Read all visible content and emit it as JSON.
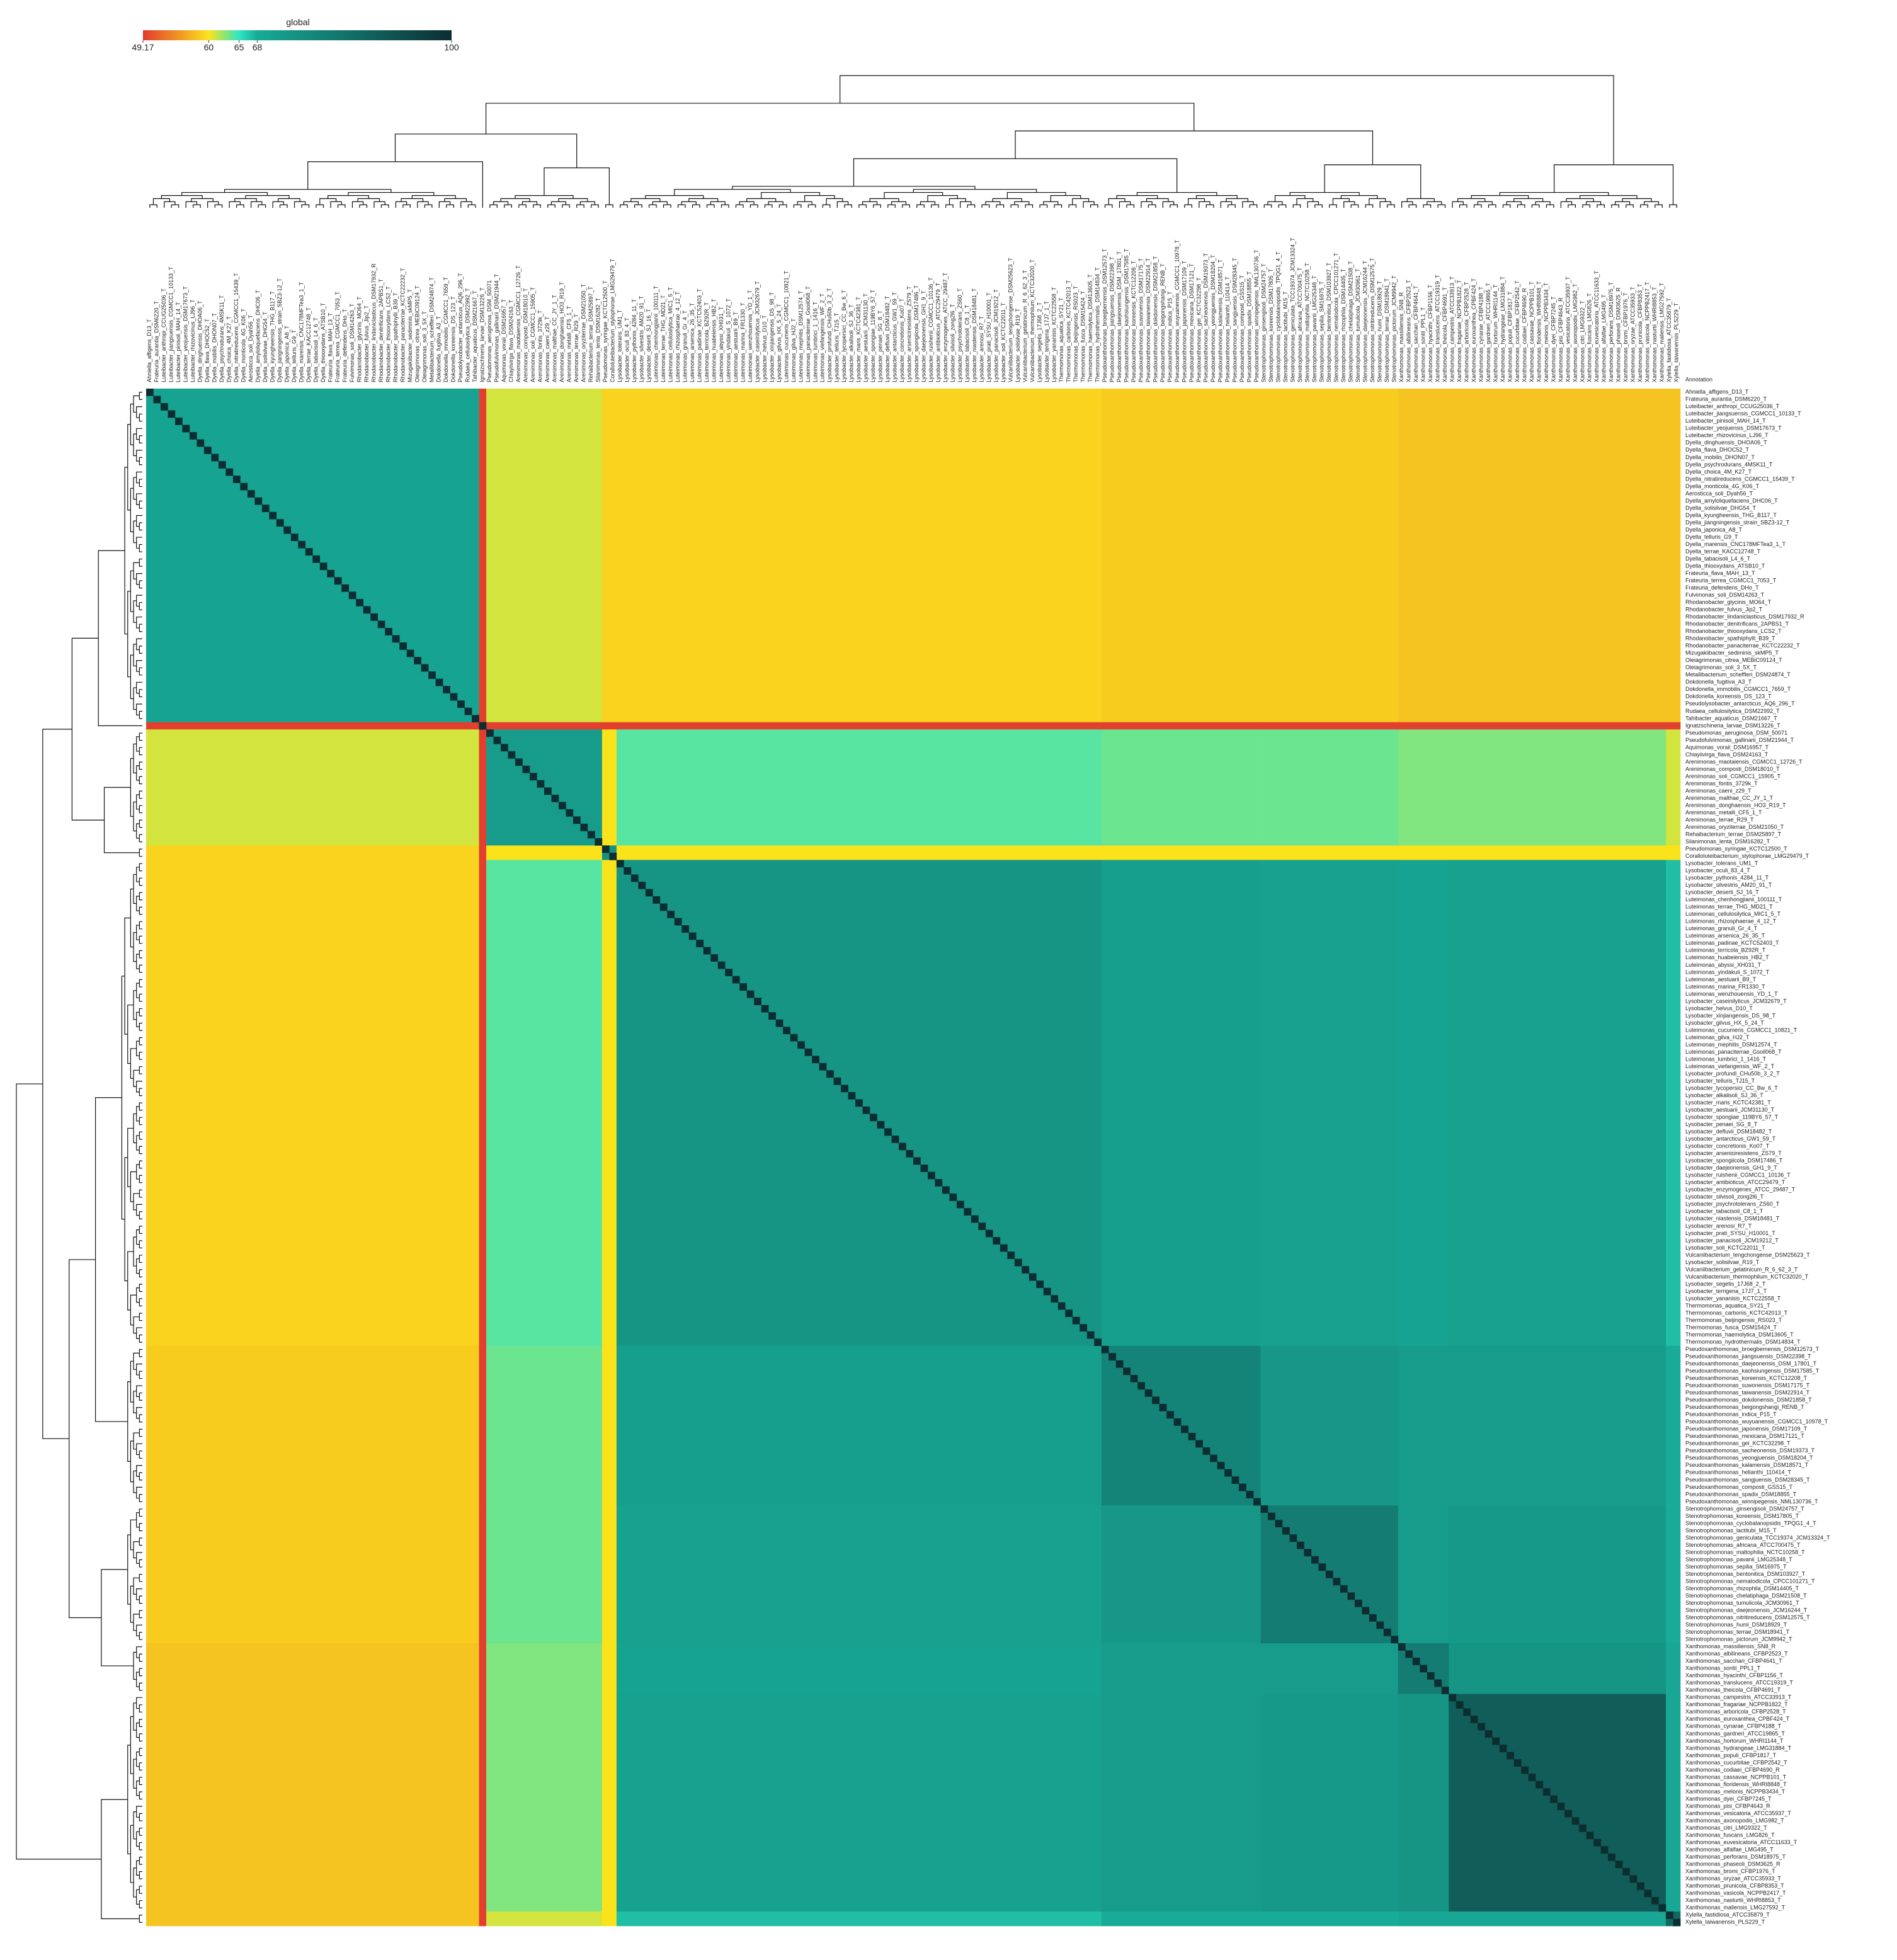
{
  "chart_data": {
    "type": "heatmap",
    "colorbar_title": "global",
    "annotation_title": "Annotation",
    "colorbar_ticks": [
      49.17,
      60,
      65,
      68,
      100
    ],
    "colorbar_colors": [
      "#e23a2f",
      "#fbe31c",
      "#2fe6c2",
      "#18ab97",
      "#0c2e33"
    ],
    "labels": [
      "Ahniella_affigens_D13_T",
      "Frateuria_aurantia_DSM6220_T",
      "Luteibacter_anthropi_CCUG25036_T",
      "Luteibacter_jiangsuensis_CGMCC1_10133_T",
      "Luteibacter_pinisoli_MAH_14_T",
      "Luteibacter_yeojuensis_DSM17673_T",
      "Luteibacter_rhizovicinus_LJ96_T",
      "Dyella_dinghuensis_DHOA06_T",
      "Dyella_flava_DHOC52_T",
      "Dyella_mobilis_DHON07_T",
      "Dyella_psychrodurans_4MSK11_T",
      "Dyella_choica_4M_K27_T",
      "Dyella_nitratireducens_CGMCC1_15439_T",
      "Dyella_monticola_4G_K06_T",
      "Aerosticca_soli_Dyah56_T",
      "Dyella_amyloliquefaciens_DHC06_T",
      "Dyella_solisilvae_DHG54_T",
      "Dyella_kyungheensis_THG_B117_T",
      "Dyella_jiangningensis_strain_SBZ3-12_T",
      "Dyella_japonica_A8_T",
      "Dyella_telluris_G9_T",
      "Dyella_marensis_CNC178MFTea3_1_T",
      "Dyella_terrae_KACC12748_T",
      "Dyella_tabacisoli_L4_6_T",
      "Dyella_thiooxydans_ATSB10_T",
      "Frateuria_flava_MAH_13_T",
      "Frateuria_terrea_CGMCC1_7053_T",
      "Frateuria_defendens_DHo_T",
      "Fulvimonas_soli_DSM14263_T",
      "Rhodanobacter_glycinis_MO64_T",
      "Rhodanobacter_fulvus_Jip2_T",
      "Rhodanobacter_lindaniclasticus_DSM17932_R",
      "Rhodanobacter_denitrificans_2APBS1_T",
      "Rhodanobacter_thiooxydans_LCS2_T",
      "Rhodanobacter_spathiphylli_B39_T",
      "Rhodanobacter_panaciterrae_KCTC22232_T",
      "Mizugakiibacter_sediminis_skMP5_T",
      "Oleiagrimonas_citrea_MEBiC09124_T",
      "Oleiagrimonas_soli_3_5X_T",
      "Metallibacterium_scheffleri_DSM24874_T",
      "Dokdonella_fugitiva_A3_T",
      "Dokdonella_immobilis_CGMCC1_7659_T",
      "Dokdonella_koreensis_DS_123_T",
      "Pseudolysobacter_antarcticus_AQ6_296_T",
      "Rudaea_cellulosilytica_DSM22992_T",
      "Tahibacter_aquaticus_DSM21667_T",
      "Ignatzschineria_larvae_DSM13226_T",
      "Pseudomonas_aeruginosa_DSM_50071",
      "Pseudofulvimonas_gallinarii_DSM21944_T",
      "Aquimonas_voraii_DSM16957_T",
      "Chiayiivirga_flava_DSM24163_T",
      "Arenimonas_maotaiensis_CGMCC1_12726_T",
      "Arenimonas_composti_DSM18010_T",
      "Arenimonas_soli_CGMCC1_15905_T",
      "Arenimonas_fontis_3729k_T",
      "Arenimonas_caeni_z29_T",
      "Arenimonas_malthae_CC_JY_1_T",
      "Arenimonas_donghaensis_HO3_R19_T",
      "Arenimonas_metalli_CF5_1_T",
      "Arenimonas_terrae_R29_T",
      "Arenimonas_oryziterrae_DSM21050_T",
      "Rehaibacterium_terrae_DSM25897_T",
      "Silanimonas_lenta_DSM16282_T",
      "Pseudomonas_syringae_KCTC12500_T",
      "Coralloluteibacterium_stylophorae_LMG29479_T",
      "Lysobacter_tolerans_UM1_T",
      "Lysobacter_oculi_83_4_T",
      "Lysobacter_pythonis_4284_11_T",
      "Lysobacter_silvestris_AM20_91_T",
      "Lysobacter_deserti_SJ_16_T",
      "Luteimonas_chenhongjianii_100111_T",
      "Luteimonas_terrae_THG_MD21_T",
      "Luteimonas_cellulosilytica_MIC1_5_T",
      "Luteimonas_rhizosphaerae_4_12_T",
      "Luteimonas_granuli_Gr_4_T",
      "Luteimonas_arsenica_26_35_T",
      "Luteimonas_padinae_KCTC52403_T",
      "Luteimonas_terricola_BZ92R_T",
      "Luteimonas_huabeiensis_HB2_T",
      "Luteimonas_abyssi_XH031_T",
      "Luteimonas_yindakuii_S_1072_T",
      "Luteimonas_aestuarii_B9_T",
      "Luteimonas_marina_FR1330_T",
      "Luteimonas_wenzhouensis_YD_1_T",
      "Lysobacter_caseinilyticus_JCM32679_T",
      "Lysobacter_helvus_D10_T",
      "Lysobacter_xinjiangensis_DS_98_T",
      "Lysobacter_gilvus_HX_5_24_T",
      "Luteimonas_cucumeris_CGMCC1_10821_T",
      "Luteimonas_gilva_HJ2_T",
      "Luteimonas_mephitis_DSM12574_T",
      "Luteimonas_panaciterrae_Gsoil068_T",
      "Luteimonas_lumbrici_1_1416_T",
      "Luteimonas_viefangensis_WF_2_T",
      "Lysobacter_profundi_CHu50b_3_2_T",
      "Lysobacter_telluris_TJ15_T",
      "Lysobacter_lycopersici_CC_Bw_6_T",
      "Lysobacter_alkalisoli_SJ_36_T",
      "Lysobacter_maris_KCTC42381_T",
      "Lysobacter_aestuarii_JCM31130_T",
      "Lysobacter_spongiae_119BY6_57_T",
      "Lysobacter_penaei_SG_8_T",
      "Lysobacter_defluvii_DSM18482_T",
      "Lysobacter_antarcticus_GW1_59_T",
      "Lysobacter_concretionis_Ko07_T",
      "Lysobacter_arseniciresistens_ZS79_T",
      "Lysobacter_spongiicola_DSM17486_T",
      "Lysobacter_daejeonensis_GH1_9_T",
      "Lysobacter_ruishenii_CGMCC1_10136_T",
      "Lysobacter_antibioticus_ATCC29479_T",
      "Lysobacter_enzymogenes_ATCC_29487_T",
      "Lysobacter_silvisoli_zong2l6_T",
      "Lysobacter_psychrotolerans_ZS60_T",
      "Lysobacter_tabacisoli_C8_1_T",
      "Lysobacter_niastensis_DSM18481_T",
      "Lysobacter_arenosi_R7_T",
      "Lysobacter_prati_SYSU_H10001_T",
      "Lysobacter_panacisoli_JCM19212_T",
      "Lysobacter_soli_KCTC22011_T",
      "Vulcaniibacterium_tengchongense_DSM25623_T",
      "Lysobacter_solisilvae_R19_T",
      "Vulcaniibacterium_gelatinicum_R_6_62_3_T",
      "Vulcaniibacterium_thermophilum_KCTC32020_T",
      "Lysobacter_segetis_17J68_2_T",
      "Lysobacter_terrigena_17J7_1_T",
      "Lysobacter_yananisis_KCTC22558_T",
      "Thermomonas_aquatica_SY21_T",
      "Thermomonas_carbonis_KCTC42013_T",
      "Thermomonas_beijingensis_RS023_T",
      "Thermomonas_fusca_DSM15424_T",
      "Thermomonas_haemolytica_DSM13605_T",
      "Thermomonas_hydrothermalis_DSM14834_T",
      "Pseudoxanthomonas_broegbernensis_DSM12573_T",
      "Pseudoxanthomonas_jiangsuensis_DSM22398_T",
      "Pseudoxanthomonas_daejeonensis_DSM_17801_T",
      "Pseudoxanthomonas_kaohsiungensis_DSM17585_T",
      "Pseudoxanthomonas_koreensis_KCTC12208_T",
      "Pseudoxanthomonas_suwonensis_DSM17175_T",
      "Pseudoxanthomonas_taiwanensis_DSM22914_T",
      "Pseudoxanthomonas_dokdonensis_DSM21858_T",
      "Pseudoxanthomonas_beigongshangi_RENB_T",
      "Pseudoxanthomonas_indica_P15_T",
      "Pseudoxanthomonas_wuyuanensis_CGMCC1_10978_T",
      "Pseudoxanthomonas_japonensis_DSM17109_T",
      "Pseudoxanthomonas_mexicana_DSM17121_T",
      "Pseudoxanthomonas_gei_KCTC32298_T",
      "Pseudoxanthomonas_sacheonensis_DSM19373_T",
      "Pseudoxanthomonas_yeongjuensis_DSM18204_T",
      "Pseudoxanthomonas_kalamensis_DSM18571_T",
      "Pseudoxanthomonas_helianthi_110414_T",
      "Pseudoxanthomonas_sangjuensis_DSM28345_T",
      "Pseudoxanthomonas_composti_GSS15_T",
      "Pseudoxanthomonas_spadix_DSM18855_T",
      "Pseudoxanthomonas_winnipegensis_NML130736_T",
      "Stenotrophomonas_ginsengisoli_DSM24757_T",
      "Stenotrophomonas_koreensis_DSM17805_T",
      "Stenotrophomonas_cyclobalanopsidis_TPQG1_4_T",
      "Stenotrophomonas_lactitubi_M15_T",
      "Stenotrophomonas_geniculata_TCC19374_JCM13324_T",
      "Stenotrophomonas_africana_ATCC700475_T",
      "Stenotrophomonas_maltophilia_NCTC10258_T",
      "Stenotrophomonas_pavanii_LMG25348_T",
      "Stenotrophomonas_sepilia_SM16975_T",
      "Stenotrophomonas_bentonitica_DSM103927_T",
      "Stenotrophomonas_nematodicola_CPCC101271_T",
      "Stenotrophomonas_rhizophila_DSM14405_T",
      "Stenotrophomonas_chelatiphaga_DSM21508_T",
      "Stenotrophomonas_tumulicola_JCM30961_T",
      "Stenotrophomonas_daejeonensis_JCM16244_T",
      "Stenotrophomonas_nitritireducens_DSM12575_T",
      "Stenotrophomonas_humi_DSM18929_T",
      "Stenotrophomonas_terrae_DSM18941_T",
      "Stenotrophomonas_pictorum_JCM9942_T",
      "Xanthomonas_massiliensis_SN8_R",
      "Xanthomonas_albilineans_CFBP2523_T",
      "Xanthomonas_sacchari_CFBP4641_T",
      "Xanthomonas_sontii_PPL1_T",
      "Xanthomonas_hyacinthi_CFBP1156_T",
      "Xanthomonas_translucens_ATCC19319_T",
      "Xanthomonas_theicola_CFBP4691_T",
      "Xanthomonas_campestris_ATCC33913_T",
      "Xanthomonas_fragariae_NCPPB1822_T",
      "Xanthomonas_arboricola_CFBP2528_T",
      "Xanthomonas_euroxanthea_CPBF424_T",
      "Xanthomonas_cynarae_CFBP4188_T",
      "Xanthomonas_gardneri_ATCC19865_T",
      "Xanthomonas_hortorum_WHRI1144_T",
      "Xanthomonas_hydrangeae_LMG31884_T",
      "Xanthomonas_populi_CFBP1817_T",
      "Xanthomonas_cucurbitae_CFBP2542_T",
      "Xanthomonas_codiaei_CFBP4690_R",
      "Xanthomonas_cassavae_NCPPB101_T",
      "Xanthomonas_floridensis_WHRI8848_T",
      "Xanthomonas_melonis_NCPPB3434_T",
      "Xanthomonas_dyei_CFBP7245_T",
      "Xanthomonas_pisi_CFBP4643_R",
      "Xanthomonas_vesicatoria_ATCC35937_T",
      "Xanthomonas_axonopodis_LMG982_T",
      "Xanthomonas_citri_LMG9322_T",
      "Xanthomonas_fuscans_LMG826_T",
      "Xanthomonas_euvesicatoria_ATCC11633_T",
      "Xanthomonas_alfalfae_LMG495_T",
      "Xanthomonas_perforans_DSM18975_T",
      "Xanthomonas_phaseoli_DSM3625_R",
      "Xanthomonas_bromi_CFBP1976_T",
      "Xanthomonas_oryzae_ATCC35933_T",
      "Xanthomonas_prunicola_CFBP8353_T",
      "Xanthomonas_vasicola_NCPPB2417_T",
      "Xanthomonas_nasturtii_WHRI8853_T",
      "Xanthomonas_maliensis_LMG27592_T",
      "Xylella_fastidiosa_ATCC35879_T",
      "Xylella_taiwanensis_PLS229_T"
    ],
    "blocks": {
      "starts": [
        0,
        46,
        47,
        63,
        65,
        132,
        154,
        173,
        180,
        210
      ],
      "values": [
        [
          70,
          49.5,
          61,
          59,
          59,
          58.5,
          58.5,
          58,
          58,
          58
        ],
        [
          49.5,
          100,
          49.5,
          49.5,
          49.5,
          49.5,
          49.5,
          49.5,
          49.5,
          49.5
        ],
        [
          61,
          49.5,
          72,
          60,
          64,
          63.5,
          63.5,
          63,
          63,
          61
        ],
        [
          59,
          49.5,
          60,
          75,
          60,
          60,
          60,
          60,
          60,
          60
        ],
        [
          59,
          49.5,
          64,
          60,
          74,
          71,
          70.5,
          70,
          70.5,
          67
        ],
        [
          58.5,
          49.5,
          63.5,
          60,
          71,
          78,
          73,
          72,
          72,
          68
        ],
        [
          58.5,
          49.5,
          63.5,
          60,
          70.5,
          73,
          80,
          72,
          72.5,
          68
        ],
        [
          58,
          49.5,
          63,
          60,
          70,
          72,
          72,
          80,
          74,
          69
        ],
        [
          58,
          49.5,
          63,
          60,
          70.5,
          72,
          72.5,
          74,
          88,
          69
        ],
        [
          58,
          49.5,
          61,
          60,
          67,
          68,
          68,
          69,
          69,
          85
        ]
      ]
    },
    "diagonal": 100
  }
}
